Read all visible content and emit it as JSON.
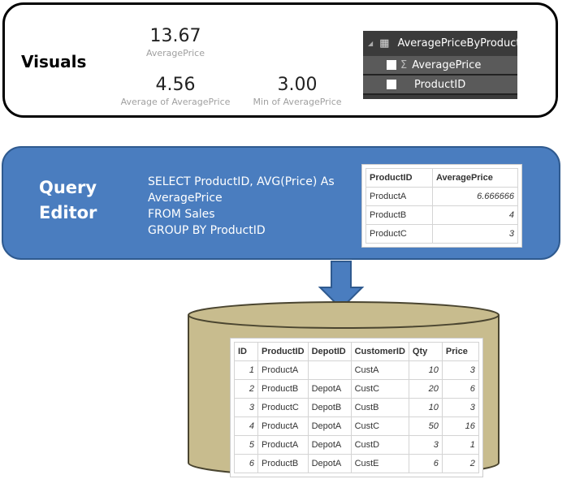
{
  "visuals": {
    "label": "Visuals",
    "kpis": [
      {
        "value": "13.67",
        "label": "AveragePrice"
      },
      {
        "value": "4.56",
        "label": "Average of AveragePrice"
      },
      {
        "value": "3.00",
        "label": "Min of AveragePrice"
      }
    ],
    "fields": {
      "table": "AveragePriceByProduct",
      "items": [
        {
          "name": "AveragePrice",
          "icon": "sigma-icon"
        },
        {
          "name": "ProductID"
        }
      ]
    }
  },
  "query_editor": {
    "label_line1": "Query",
    "label_line2": "Editor",
    "sql": [
      "SELECT ProductID, AVG(Price) As",
      "AveragePrice",
      "FROM Sales",
      "GROUP BY ProductID"
    ],
    "result": {
      "headers": [
        "ProductID",
        "AveragePrice"
      ],
      "rows": [
        [
          "ProductA",
          "6.666666"
        ],
        [
          "ProductB",
          "4"
        ],
        [
          "ProductC",
          "3"
        ]
      ]
    }
  },
  "database": {
    "headers": [
      "ID",
      "ProductID",
      "DepotID",
      "CustomerID",
      "Qty",
      "Price"
    ],
    "rows": [
      [
        "1",
        "ProductA",
        "",
        "CustA",
        "10",
        "3"
      ],
      [
        "2",
        "ProductB",
        "DepotA",
        "CustC",
        "20",
        "6"
      ],
      [
        "3",
        "ProductC",
        "DepotB",
        "CustB",
        "10",
        "3"
      ],
      [
        "4",
        "ProductA",
        "DepotA",
        "CustC",
        "50",
        "16"
      ],
      [
        "5",
        "ProductA",
        "DepotA",
        "CustD",
        "3",
        "1"
      ],
      [
        "6",
        "ProductB",
        "DepotA",
        "CustE",
        "6",
        "2"
      ]
    ]
  },
  "colors": {
    "query_fill": "#4a7dbf",
    "db_fill": "#c8bc8e",
    "arrow": "#4a7dbf"
  }
}
